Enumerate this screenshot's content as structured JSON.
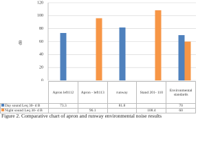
{
  "chart_data": {
    "type": "bar",
    "y_label": "dB",
    "categories": [
      "Apron left112",
      "Apron - left113",
      "runway",
      "Stand 201- 110",
      "Environmental standards"
    ],
    "series": [
      {
        "name": "Day sound Leq 30- d B",
        "color": "#4f81bd",
        "values": [
          73.3,
          null,
          81.8,
          null,
          70
        ]
      },
      {
        "name": "Night sound Leq 30- d B",
        "color": "#f79646",
        "values": [
          null,
          96.1,
          null,
          108.4,
          60
        ]
      }
    ],
    "ylim": [
      0,
      120
    ],
    "yticks": [
      0,
      20,
      40,
      60,
      80,
      100,
      120
    ],
    "grid": true,
    "caption": "Figure 2. Comparative chart of apron and runway environmental noise results"
  }
}
